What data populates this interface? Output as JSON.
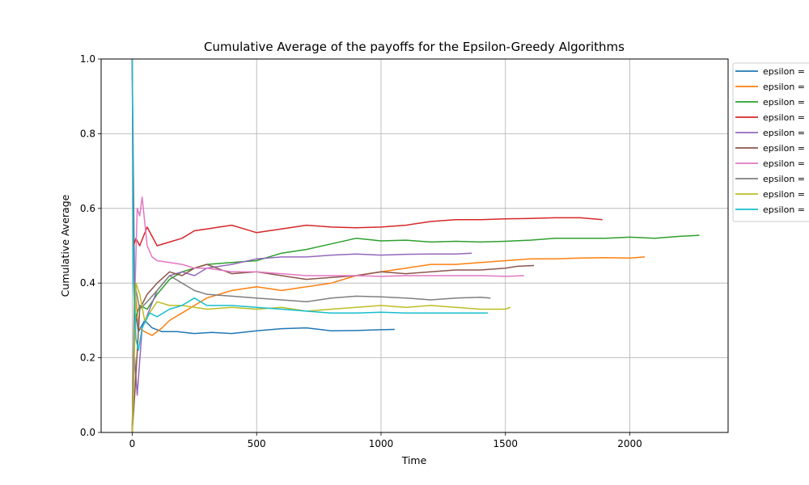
{
  "chart_data": {
    "type": "line",
    "title": "Cumulative Average of the payoffs for the Epsilon-Greedy Algorithms",
    "xlabel": "Time",
    "ylabel": "Cumulative Average",
    "xlim": [
      -125,
      2395
    ],
    "ylim": [
      0.0,
      1.0
    ],
    "xticks": [
      0,
      500,
      1000,
      1500,
      2000
    ],
    "yticks": [
      0.0,
      0.2,
      0.4,
      0.6,
      0.8,
      1.0
    ],
    "xtick_labels": [
      "0",
      "500",
      "1000",
      "1500",
      "2000"
    ],
    "ytick_labels": [
      "0.0",
      "0.2",
      "0.4",
      "0.6",
      "0.8",
      "1.0"
    ],
    "grid": true,
    "legend_position": "outside-right",
    "series": [
      {
        "name": "epsilon =",
        "color": "#1f77b4",
        "x": [
          0,
          10,
          25,
          50,
          80,
          120,
          180,
          250,
          320,
          400,
          500,
          600,
          700,
          800,
          900,
          1000,
          1055
        ],
        "y": [
          1.0,
          0.33,
          0.27,
          0.3,
          0.28,
          0.27,
          0.27,
          0.265,
          0.268,
          0.265,
          0.272,
          0.278,
          0.28,
          0.272,
          0.273,
          0.275,
          0.276
        ]
      },
      {
        "name": "epsilon =",
        "color": "#ff7f0e",
        "x": [
          0,
          10,
          25,
          50,
          80,
          120,
          150,
          200,
          250,
          300,
          400,
          500,
          600,
          700,
          800,
          900,
          1000,
          1100,
          1200,
          1300,
          1400,
          1500,
          1600,
          1700,
          1800,
          1900,
          2000,
          2060
        ],
        "y": [
          0.0,
          0.4,
          0.28,
          0.27,
          0.26,
          0.28,
          0.3,
          0.32,
          0.34,
          0.36,
          0.38,
          0.39,
          0.38,
          0.39,
          0.4,
          0.42,
          0.43,
          0.44,
          0.45,
          0.45,
          0.455,
          0.46,
          0.465,
          0.465,
          0.467,
          0.468,
          0.467,
          0.47
        ]
      },
      {
        "name": "epsilon =",
        "color": "#2ca02c",
        "x": [
          0,
          10,
          30,
          60,
          100,
          150,
          200,
          250,
          300,
          400,
          500,
          600,
          700,
          800,
          900,
          1000,
          1100,
          1200,
          1300,
          1400,
          1500,
          1600,
          1700,
          1800,
          1900,
          2000,
          2100,
          2200,
          2280
        ],
        "y": [
          0.0,
          0.3,
          0.34,
          0.33,
          0.37,
          0.41,
          0.43,
          0.44,
          0.45,
          0.455,
          0.46,
          0.48,
          0.49,
          0.505,
          0.52,
          0.513,
          0.515,
          0.51,
          0.512,
          0.51,
          0.512,
          0.515,
          0.52,
          0.52,
          0.52,
          0.523,
          0.52,
          0.525,
          0.528
        ]
      },
      {
        "name": "epsilon =",
        "color": "#d62728",
        "x": [
          0,
          5,
          15,
          30,
          60,
          100,
          150,
          200,
          250,
          300,
          350,
          400,
          450,
          500,
          600,
          700,
          800,
          900,
          1000,
          1100,
          1200,
          1300,
          1400,
          1500,
          1600,
          1700,
          1800,
          1890
        ],
        "y": [
          1.0,
          0.5,
          0.52,
          0.5,
          0.55,
          0.5,
          0.51,
          0.52,
          0.54,
          0.545,
          0.55,
          0.555,
          0.545,
          0.535,
          0.545,
          0.555,
          0.55,
          0.548,
          0.55,
          0.555,
          0.565,
          0.57,
          0.57,
          0.572,
          0.573,
          0.575,
          0.575,
          0.57
        ]
      },
      {
        "name": "epsilon =",
        "color": "#9467bd",
        "x": [
          0,
          10,
          20,
          40,
          70,
          100,
          150,
          200,
          250,
          300,
          400,
          500,
          600,
          700,
          800,
          900,
          1000,
          1100,
          1200,
          1300,
          1365
        ],
        "y": [
          0.0,
          0.2,
          0.1,
          0.28,
          0.33,
          0.38,
          0.42,
          0.43,
          0.42,
          0.44,
          0.45,
          0.465,
          0.47,
          0.47,
          0.475,
          0.478,
          0.475,
          0.477,
          0.478,
          0.478,
          0.48
        ]
      },
      {
        "name": "epsilon =",
        "color": "#8c564b",
        "x": [
          0,
          10,
          30,
          60,
          100,
          150,
          200,
          250,
          300,
          400,
          500,
          600,
          700,
          800,
          900,
          1000,
          1100,
          1200,
          1300,
          1400,
          1500,
          1550,
          1615
        ],
        "y": [
          0.0,
          0.1,
          0.33,
          0.37,
          0.4,
          0.43,
          0.42,
          0.44,
          0.45,
          0.425,
          0.43,
          0.42,
          0.41,
          0.415,
          0.42,
          0.43,
          0.425,
          0.43,
          0.435,
          0.435,
          0.44,
          0.445,
          0.447
        ]
      },
      {
        "name": "epsilon =",
        "color": "#e377c2",
        "x": [
          0,
          10,
          20,
          30,
          40,
          60,
          80,
          100,
          150,
          200,
          250,
          300,
          400,
          500,
          600,
          700,
          800,
          900,
          1000,
          1100,
          1200,
          1300,
          1400,
          1500,
          1575
        ],
        "y": [
          0.0,
          0.35,
          0.6,
          0.58,
          0.63,
          0.5,
          0.47,
          0.46,
          0.455,
          0.45,
          0.44,
          0.44,
          0.43,
          0.43,
          0.425,
          0.42,
          0.42,
          0.42,
          0.418,
          0.42,
          0.42,
          0.42,
          0.42,
          0.418,
          0.42
        ]
      },
      {
        "name": "epsilon =",
        "color": "#7f7f7f",
        "x": [
          0,
          10,
          30,
          60,
          100,
          150,
          200,
          250,
          300,
          400,
          500,
          600,
          700,
          800,
          900,
          1000,
          1100,
          1200,
          1300,
          1400,
          1440
        ],
        "y": [
          0.0,
          0.4,
          0.33,
          0.35,
          0.38,
          0.42,
          0.4,
          0.38,
          0.37,
          0.365,
          0.36,
          0.355,
          0.35,
          0.36,
          0.365,
          0.363,
          0.36,
          0.355,
          0.36,
          0.362,
          0.36
        ]
      },
      {
        "name": "epsilon =",
        "color": "#bcbd22",
        "x": [
          0,
          5,
          15,
          30,
          50,
          80,
          100,
          150,
          200,
          300,
          400,
          500,
          600,
          700,
          800,
          900,
          1000,
          1100,
          1200,
          1300,
          1400,
          1500,
          1520
        ],
        "y": [
          0.0,
          0.1,
          0.4,
          0.37,
          0.3,
          0.33,
          0.35,
          0.34,
          0.34,
          0.33,
          0.335,
          0.33,
          0.335,
          0.325,
          0.33,
          0.335,
          0.34,
          0.335,
          0.34,
          0.335,
          0.33,
          0.33,
          0.335
        ]
      },
      {
        "name": "epsilon =",
        "color": "#17becf",
        "x": [
          0,
          5,
          15,
          25,
          40,
          70,
          100,
          150,
          200,
          250,
          300,
          400,
          500,
          600,
          700,
          800,
          900,
          1000,
          1100,
          1200,
          1300,
          1400,
          1430
        ],
        "y": [
          1.0,
          0.4,
          0.25,
          0.22,
          0.28,
          0.32,
          0.31,
          0.33,
          0.34,
          0.36,
          0.34,
          0.34,
          0.335,
          0.33,
          0.325,
          0.32,
          0.32,
          0.322,
          0.32,
          0.32,
          0.32,
          0.32,
          0.32
        ]
      }
    ]
  }
}
